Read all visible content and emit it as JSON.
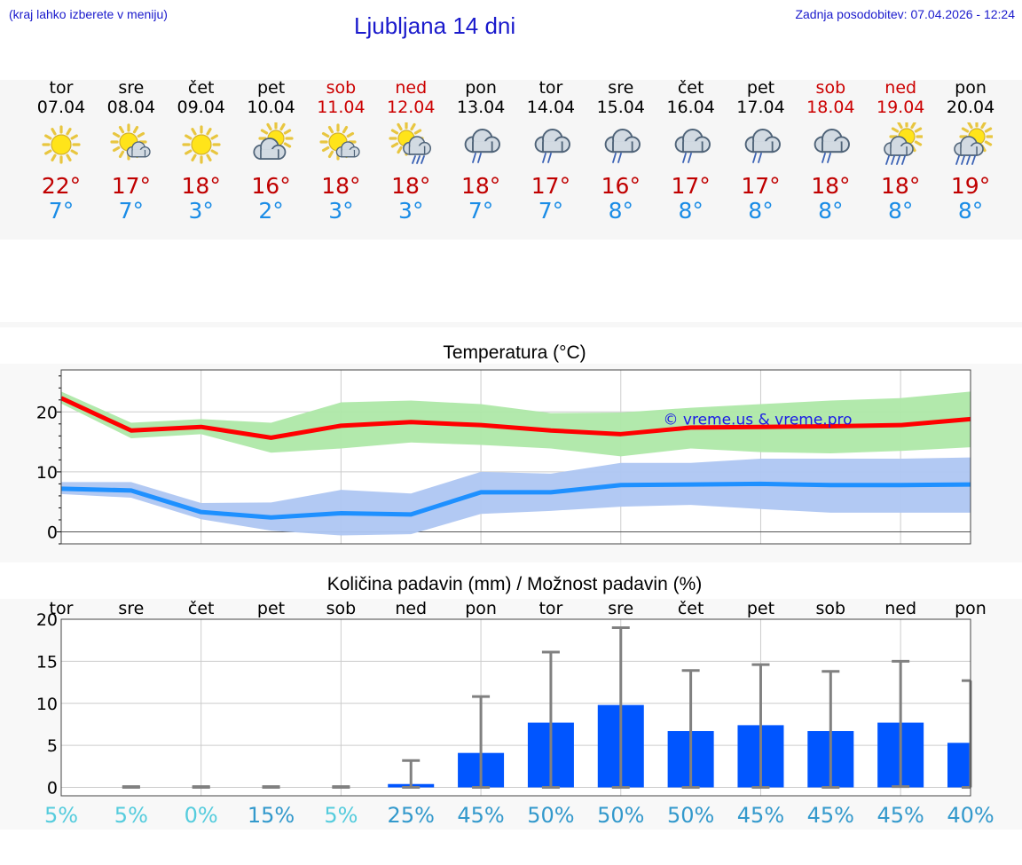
{
  "header": {
    "hint": "(kraj lahko izberete v meniju)",
    "title": "Ljubljana 14 dni",
    "updated": "Zadnja posodobitev: 07.04.2026 - 12:24"
  },
  "colors": {
    "weekend": "#cc0000",
    "max_temp": "#c00000",
    "min_temp": "#1a8ce6",
    "max_line": "#ff0000",
    "max_band": "#aee8a8",
    "min_line": "#1e90ff",
    "min_band": "#aec6f2",
    "bar": "#0055ff",
    "error": "#808080",
    "prob_low": "#55ccdd",
    "prob_high": "#3399cc"
  },
  "forecast": [
    {
      "day": "tor",
      "date": "07.04",
      "weekend": false,
      "icon": "sun-icon",
      "max": "22°",
      "min": "7°"
    },
    {
      "day": "sre",
      "date": "08.04",
      "weekend": false,
      "icon": "sun-small-cloud-icon",
      "max": "17°",
      "min": "7°"
    },
    {
      "day": "čet",
      "date": "09.04",
      "weekend": false,
      "icon": "sun-icon",
      "max": "18°",
      "min": "3°"
    },
    {
      "day": "pet",
      "date": "10.04",
      "weekend": false,
      "icon": "cloud-sun-icon",
      "max": "16°",
      "min": "2°"
    },
    {
      "day": "sob",
      "date": "11.04",
      "weekend": true,
      "icon": "sun-small-cloud-icon",
      "max": "18°",
      "min": "3°"
    },
    {
      "day": "ned",
      "date": "12.04",
      "weekend": true,
      "icon": "sun-rain-icon",
      "max": "18°",
      "min": "3°"
    },
    {
      "day": "pon",
      "date": "13.04",
      "weekend": false,
      "icon": "cloud-rain-icon",
      "max": "18°",
      "min": "7°"
    },
    {
      "day": "tor",
      "date": "14.04",
      "weekend": false,
      "icon": "cloud-rain-icon",
      "max": "17°",
      "min": "7°"
    },
    {
      "day": "sre",
      "date": "15.04",
      "weekend": false,
      "icon": "cloud-rain-icon",
      "max": "16°",
      "min": "8°"
    },
    {
      "day": "čet",
      "date": "16.04",
      "weekend": false,
      "icon": "cloud-rain-icon",
      "max": "17°",
      "min": "8°"
    },
    {
      "day": "pet",
      "date": "17.04",
      "weekend": false,
      "icon": "cloud-rain-icon",
      "max": "17°",
      "min": "8°"
    },
    {
      "day": "sob",
      "date": "18.04",
      "weekend": true,
      "icon": "cloud-rain-icon",
      "max": "18°",
      "min": "8°"
    },
    {
      "day": "ned",
      "date": "19.04",
      "weekend": true,
      "icon": "sun-heavy-rain-icon",
      "max": "18°",
      "min": "8°"
    },
    {
      "day": "pon",
      "date": "20.04",
      "weekend": false,
      "icon": "sun-heavy-rain-icon",
      "max": "19°",
      "min": "8°"
    }
  ],
  "chart_data": [
    {
      "type": "line",
      "title": "Temperatura (°C)",
      "watermark": "© vreme.us & vreme.pro",
      "ylim": [
        -2,
        27
      ],
      "yticks": [
        0,
        10,
        20
      ],
      "grid": true,
      "x": [
        "07.04",
        "08.04",
        "09.04",
        "10.04",
        "11.04",
        "12.04",
        "13.04",
        "14.04",
        "15.04",
        "16.04",
        "17.04",
        "18.04",
        "19.04",
        "20.04"
      ],
      "series": [
        {
          "values": [
            22.3,
            16.9,
            17.5,
            15.7,
            17.7,
            18.3,
            17.8,
            16.9,
            16.3,
            17.4,
            17.5,
            17.6,
            17.8,
            18.8
          ],
          "band_low": [
            21.4,
            15.6,
            16.3,
            13.2,
            13.9,
            14.9,
            14.5,
            13.9,
            12.6,
            13.9,
            13.3,
            13.1,
            13.5,
            14.1
          ],
          "band_high": [
            23.4,
            18.2,
            18.8,
            18.2,
            21.6,
            21.9,
            21.3,
            19.8,
            19.9,
            20.7,
            21.3,
            21.9,
            22.3,
            23.4
          ]
        },
        {
          "values": [
            7.2,
            6.9,
            3.3,
            2.4,
            3.1,
            2.9,
            6.6,
            6.6,
            7.8,
            7.9,
            8.0,
            7.8,
            7.8,
            7.9
          ],
          "band_low": [
            6.3,
            5.7,
            2.1,
            0.2,
            -0.6,
            -0.4,
            3.0,
            3.5,
            4.2,
            4.5,
            3.8,
            3.2,
            3.2,
            3.2
          ],
          "band_high": [
            8.3,
            8.3,
            4.8,
            4.9,
            7.0,
            6.4,
            10.0,
            9.7,
            11.5,
            11.5,
            12.2,
            12.2,
            12.2,
            12.4
          ]
        }
      ]
    },
    {
      "type": "bar",
      "title": "Količina padavin (mm) / Možnost padavin (%)",
      "ylim": [
        -1,
        20
      ],
      "yticks": [
        0,
        5,
        10,
        15,
        20
      ],
      "grid": true,
      "categories": [
        "tor",
        "sre",
        "čet",
        "pet",
        "sob",
        "ned",
        "pon",
        "tor",
        "sre",
        "čet",
        "pet",
        "sob",
        "ned",
        "pon"
      ],
      "values": [
        0,
        0,
        0,
        0,
        0,
        0.4,
        4.1,
        7.7,
        9.8,
        6.7,
        7.4,
        6.7,
        7.7,
        5.3
      ],
      "error_high": [
        0,
        0.1,
        0.1,
        0.1,
        0.1,
        3.2,
        10.8,
        16.1,
        19.0,
        13.9,
        14.6,
        13.8,
        15.0,
        12.7
      ],
      "error_low": [
        0,
        0,
        0,
        0,
        0,
        0,
        0,
        0,
        0,
        0,
        0,
        0,
        0.1,
        0
      ],
      "probability": [
        "5%",
        "5%",
        "0%",
        "15%",
        "5%",
        "25%",
        "45%",
        "50%",
        "50%",
        "50%",
        "45%",
        "45%",
        "45%",
        "40%"
      ]
    }
  ]
}
